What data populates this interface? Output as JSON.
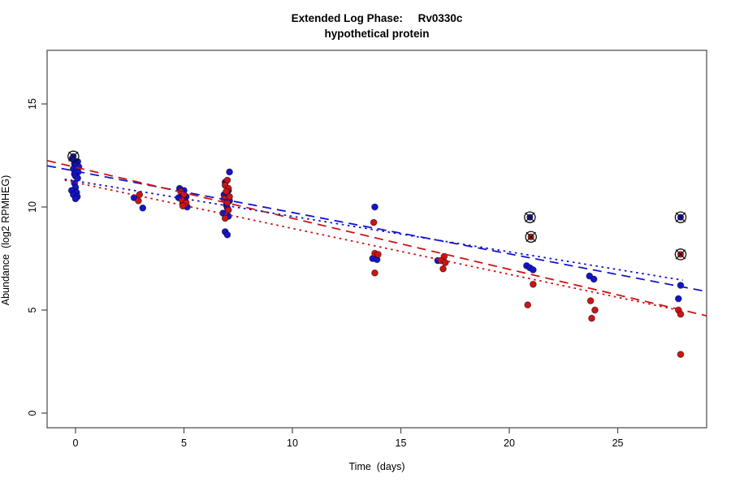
{
  "chart_data": {
    "type": "scatter",
    "title": "Extended Log Phase:     Rv0330c",
    "subtitle": "hypothetical protein",
    "xlabel": "Time  (days)",
    "ylabel": "Abundance  (log2 RPMHEG)",
    "xlim": [
      -1.31,
      29.1
    ],
    "ylim": [
      -0.71,
      17.6
    ],
    "xticks": [
      0,
      5,
      10,
      15,
      20,
      25
    ],
    "yticks": [
      0,
      5,
      10,
      15
    ],
    "legend": "none",
    "grid": false,
    "colors": {
      "blue": "#1414CC",
      "red": "#CC1414",
      "axis": "#555555",
      "symbol": "#111111"
    },
    "series": [
      {
        "name": "blue-condition",
        "color_key": "blue",
        "points": [
          [
            -0.15,
            12.35
          ],
          [
            0.1,
            12.2
          ],
          [
            -0.05,
            12.1
          ],
          [
            0,
            12.0
          ],
          [
            0.15,
            11.95
          ],
          [
            -0.1,
            11.85
          ],
          [
            0.05,
            11.8
          ],
          [
            0.12,
            11.7
          ],
          [
            -0.05,
            11.6
          ],
          [
            0,
            11.5
          ],
          [
            0.1,
            11.4
          ],
          [
            -0.05,
            11.15
          ],
          [
            0,
            10.95
          ],
          [
            -0.18,
            10.8
          ],
          [
            0.05,
            10.7
          ],
          [
            -0.1,
            10.6
          ],
          [
            0.08,
            10.5
          ],
          [
            0,
            10.4
          ],
          [
            2.7,
            10.45
          ],
          [
            3.1,
            9.95
          ],
          [
            4.8,
            10.9
          ],
          [
            5.0,
            10.8
          ],
          [
            4.9,
            10.65
          ],
          [
            5.1,
            10.5
          ],
          [
            4.75,
            10.45
          ],
          [
            5.05,
            10.3
          ],
          [
            4.95,
            10.15
          ],
          [
            5.15,
            10.0
          ],
          [
            7.1,
            11.7
          ],
          [
            6.9,
            11.2
          ],
          [
            7.05,
            10.8
          ],
          [
            6.85,
            10.6
          ],
          [
            7.1,
            10.3
          ],
          [
            6.95,
            10.1
          ],
          [
            7.0,
            9.95
          ],
          [
            6.8,
            9.7
          ],
          [
            7.05,
            9.55
          ],
          [
            6.9,
            8.8
          ],
          [
            7.0,
            8.65
          ],
          [
            13.8,
            10.0
          ],
          [
            13.7,
            7.5
          ],
          [
            13.9,
            7.45
          ],
          [
            16.7,
            7.4
          ],
          [
            20.8,
            7.15
          ],
          [
            20.95,
            7.05
          ],
          [
            21.1,
            6.95
          ],
          [
            23.7,
            6.65
          ],
          [
            23.9,
            6.5
          ],
          [
            27.9,
            6.2
          ],
          [
            27.8,
            5.55
          ]
        ]
      },
      {
        "name": "red-condition",
        "color_key": "red",
        "points": [
          [
            2.95,
            10.6
          ],
          [
            2.9,
            10.3
          ],
          [
            4.85,
            10.75
          ],
          [
            5.0,
            10.6
          ],
          [
            4.9,
            10.35
          ],
          [
            5.1,
            10.2
          ],
          [
            4.95,
            10.05
          ],
          [
            7.0,
            11.3
          ],
          [
            6.9,
            11.05
          ],
          [
            7.05,
            10.9
          ],
          [
            6.95,
            10.75
          ],
          [
            7.1,
            10.5
          ],
          [
            6.85,
            10.4
          ],
          [
            7.0,
            10.2
          ],
          [
            7.05,
            9.85
          ],
          [
            6.9,
            9.45
          ],
          [
            13.75,
            9.25
          ],
          [
            13.8,
            7.75
          ],
          [
            13.95,
            7.7
          ],
          [
            13.8,
            6.8
          ],
          [
            17.0,
            7.6
          ],
          [
            16.85,
            7.4
          ],
          [
            17.05,
            7.3
          ],
          [
            16.95,
            7.0
          ],
          [
            21.1,
            6.25
          ],
          [
            20.85,
            5.25
          ],
          [
            23.75,
            5.45
          ],
          [
            23.95,
            5.0
          ],
          [
            23.8,
            4.6
          ],
          [
            27.8,
            5.0
          ],
          [
            27.9,
            4.8
          ],
          [
            27.9,
            2.85
          ]
        ]
      }
    ],
    "circled_points": [
      {
        "x": -0.1,
        "y": 12.45,
        "color_key": "blue"
      },
      {
        "x": 20.95,
        "y": 9.5,
        "color_key": "blue"
      },
      {
        "x": 21.0,
        "y": 8.55,
        "color_key": "red"
      },
      {
        "x": 27.9,
        "y": 9.5,
        "color_key": "blue"
      },
      {
        "x": 27.9,
        "y": 7.7,
        "color_key": "red"
      }
    ],
    "trend_lines": [
      {
        "name": "blue-dashed-fit",
        "color_key": "blue",
        "dash": "dashed",
        "x1": -1.31,
        "y1": 12.0,
        "x2": 29.1,
        "y2": 5.9
      },
      {
        "name": "red-dashed-fit",
        "color_key": "red",
        "dash": "dashed",
        "x1": -1.31,
        "y1": 12.25,
        "x2": 29.1,
        "y2": 4.72
      },
      {
        "name": "blue-dotted-fit",
        "color_key": "blue",
        "dash": "dotted",
        "x1": -0.5,
        "y1": 11.35,
        "x2": 28.0,
        "y2": 6.45
      },
      {
        "name": "red-dotted-fit",
        "color_key": "red",
        "dash": "dotted",
        "x1": -0.5,
        "y1": 11.3,
        "x2": 28.0,
        "y2": 4.95
      }
    ]
  }
}
